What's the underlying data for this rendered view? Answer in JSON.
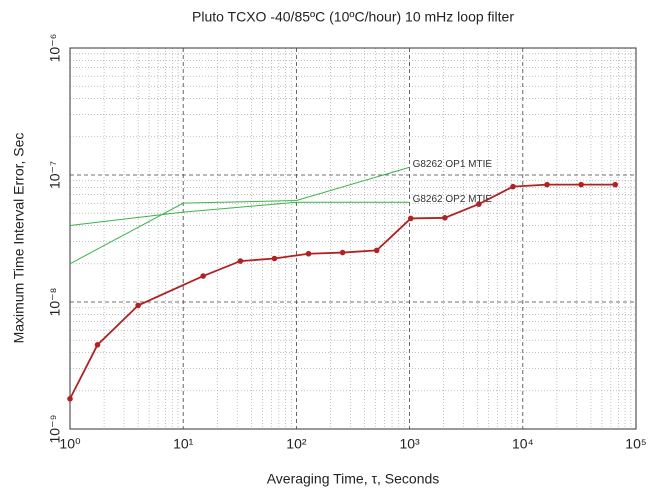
{
  "chart_data": {
    "type": "line",
    "title": "Pluto TCXO -40/85ºC (10ºC/hour) 10 mHz loop filter",
    "x_label": "Averaging Time, τ, Seconds",
    "y_label": "Maximum Time Interval Error, Sec",
    "xscale": "log",
    "yscale": "log",
    "grid": true,
    "xlim": [
      1,
      100000
    ],
    "ylim": [
      1e-09,
      1e-06
    ],
    "xticks": [
      {
        "value": 1,
        "label": "10⁰"
      },
      {
        "value": 10,
        "label": "10¹"
      },
      {
        "value": 100,
        "label": "10²"
      },
      {
        "value": 1000,
        "label": "10³"
      },
      {
        "value": 10000,
        "label": "10⁴"
      },
      {
        "value": 100000,
        "label": "10⁵"
      }
    ],
    "yticks": [
      {
        "value": 1e-09,
        "label": "10⁻⁹"
      },
      {
        "value": 1e-08,
        "label": "10⁻⁸"
      },
      {
        "value": 1e-07,
        "label": "10⁻⁷"
      },
      {
        "value": 1e-06,
        "label": "10⁻⁶"
      }
    ],
    "series": [
      {
        "name": "G8262 OP1 MTIE",
        "color": "#3cb44b",
        "markers": false,
        "x": [
          1,
          10,
          100,
          1000
        ],
        "values": [
          2e-08,
          6e-08,
          6.3e-08,
          1.15e-07
        ]
      },
      {
        "name": "G8262 OP2 MTIE",
        "color": "#3cb44b",
        "markers": false,
        "x": [
          1,
          10,
          100,
          1000
        ],
        "values": [
          4e-08,
          5.1e-08,
          6.1e-08,
          6.1e-08
        ]
      },
      {
        "color": "#b22222",
        "markers": true,
        "x": [
          1,
          1.75,
          4,
          15,
          32,
          64,
          128,
          256,
          512,
          1024,
          2048,
          4096,
          8192,
          16384,
          32768,
          65536
        ],
        "values": [
          1.73e-09,
          4.6e-09,
          9.4e-09,
          1.6e-08,
          2.1e-08,
          2.2e-08,
          2.4e-08,
          2.45e-08,
          2.55e-08,
          4.55e-08,
          4.6e-08,
          5.9e-08,
          8.1e-08,
          8.4e-08,
          8.4e-08,
          8.4e-08
        ]
      }
    ]
  }
}
